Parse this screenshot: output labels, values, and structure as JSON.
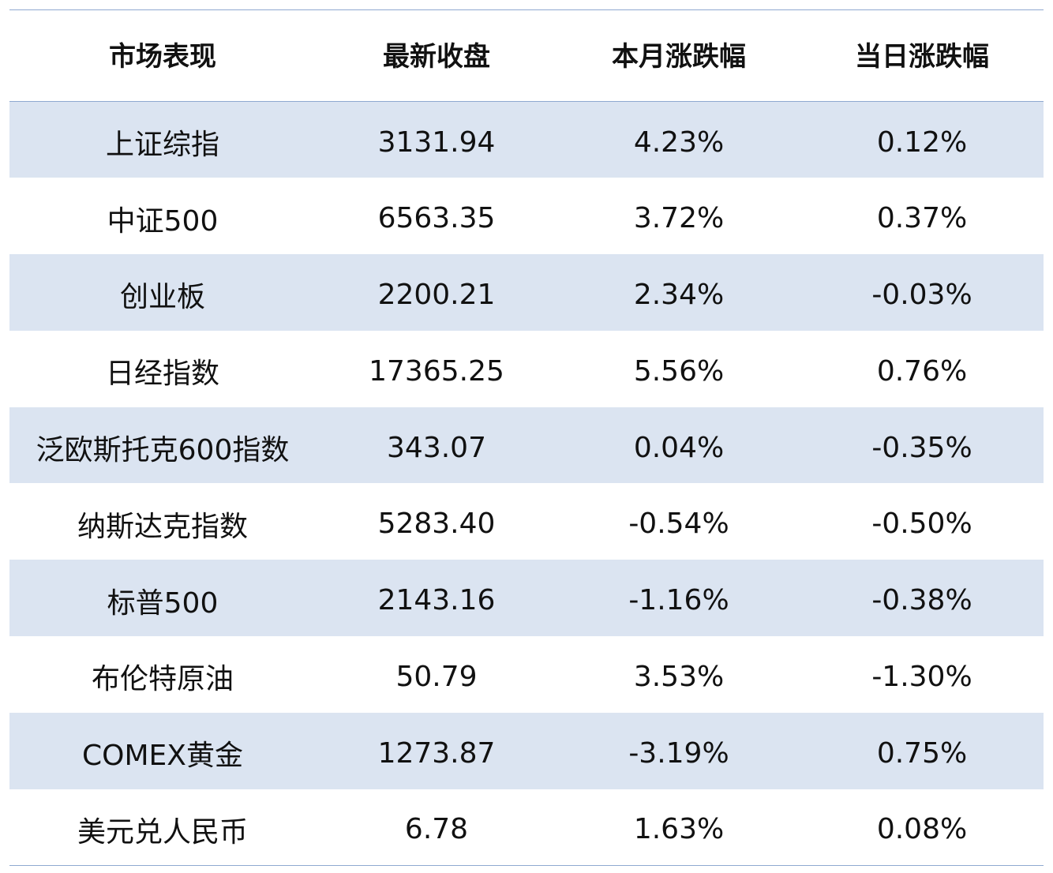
{
  "table": {
    "headers": [
      "市场表现",
      "最新收盘",
      "本月涨跌幅",
      "当日涨跌幅"
    ],
    "rows": [
      [
        "上证综指",
        "3131.94",
        "4.23%",
        "0.12%"
      ],
      [
        "中证500",
        "6563.35",
        "3.72%",
        "0.37%"
      ],
      [
        "创业板",
        "2200.21",
        "2.34%",
        "-0.03%"
      ],
      [
        "日经指数",
        "17365.25",
        "5.56%",
        "0.76%"
      ],
      [
        "泛欧斯托克600指数",
        "343.07",
        "0.04%",
        "-0.35%"
      ],
      [
        "纳斯达克指数",
        "5283.40",
        "-0.54%",
        "-0.50%"
      ],
      [
        "标普500",
        "2143.16",
        "-1.16%",
        "-0.38%"
      ],
      [
        "布伦特原油",
        "50.79",
        "3.53%",
        "-1.30%"
      ],
      [
        "COMEX黄金",
        "1273.87",
        "-3.19%",
        "0.75%"
      ],
      [
        "美元兑人民币",
        "6.78",
        "1.63%",
        "0.08%"
      ]
    ]
  },
  "colors": {
    "stripe": "#dbe4f1",
    "rule": "#8fa9d0",
    "text": "#111111"
  }
}
